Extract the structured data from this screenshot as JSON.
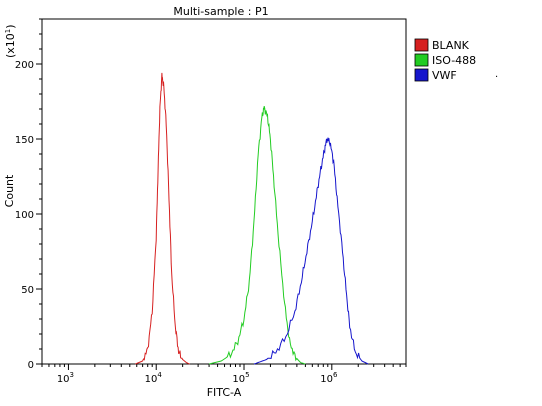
{
  "chart_data": {
    "type": "line",
    "title": "Multi-sample : P1",
    "xlabel": "FITC-A",
    "ylabel": "Count",
    "y_multiplier_base": "(x10",
    "y_multiplier_exp": "1",
    "y_multiplier_close": ")",
    "x_scale": "log",
    "xlim": [
      500,
      7000000
    ],
    "ylim": [
      0,
      230
    ],
    "x_ticks": [
      {
        "value": 1000,
        "base": "10",
        "exp": "3"
      },
      {
        "value": 10000,
        "base": "10",
        "exp": "4"
      },
      {
        "value": 100000,
        "base": "10",
        "exp": "5"
      },
      {
        "value": 1000000,
        "base": "10",
        "exp": "6"
      }
    ],
    "y_ticks": [
      0,
      50,
      100,
      150,
      200
    ],
    "legend_position": "top-right",
    "series": [
      {
        "name": "BLANK",
        "color": "#d62020",
        "x": [
          5800,
          7000,
          8000,
          9000,
          10000,
          10500,
          11000,
          11600,
          12200,
          13000,
          14000,
          15000,
          16500,
          18000,
          20000,
          22000,
          24000
        ],
        "values": [
          0,
          2,
          10,
          35,
          85,
          130,
          170,
          192,
          185,
          160,
          110,
          60,
          25,
          8,
          3,
          1,
          0
        ]
      },
      {
        "name": "ISO-488",
        "color": "#22cc22",
        "x": [
          40000,
          55000,
          70000,
          85000,
          100000,
          115000,
          130000,
          145000,
          160000,
          170000,
          185000,
          200000,
          220000,
          250000,
          290000,
          330000,
          380000,
          440000,
          500000
        ],
        "values": [
          0,
          2,
          6,
          15,
          30,
          55,
          95,
          140,
          165,
          171,
          165,
          150,
          120,
          80,
          40,
          15,
          5,
          1,
          0
        ]
      },
      {
        "name": "VWF",
        "color": "#1616cc",
        "x": [
          130000,
          180000,
          230000,
          300000,
          380000,
          450000,
          520000,
          600000,
          680000,
          750000,
          820000,
          880000,
          950000,
          1050000,
          1150000,
          1300000,
          1450000,
          1600000,
          1850000,
          2200000,
          2600000
        ],
        "values": [
          0,
          3,
          8,
          18,
          35,
          55,
          75,
          95,
          115,
          130,
          142,
          150,
          148,
          135,
          110,
          80,
          50,
          25,
          8,
          2,
          0
        ]
      }
    ],
    "stray_mark": "."
  }
}
